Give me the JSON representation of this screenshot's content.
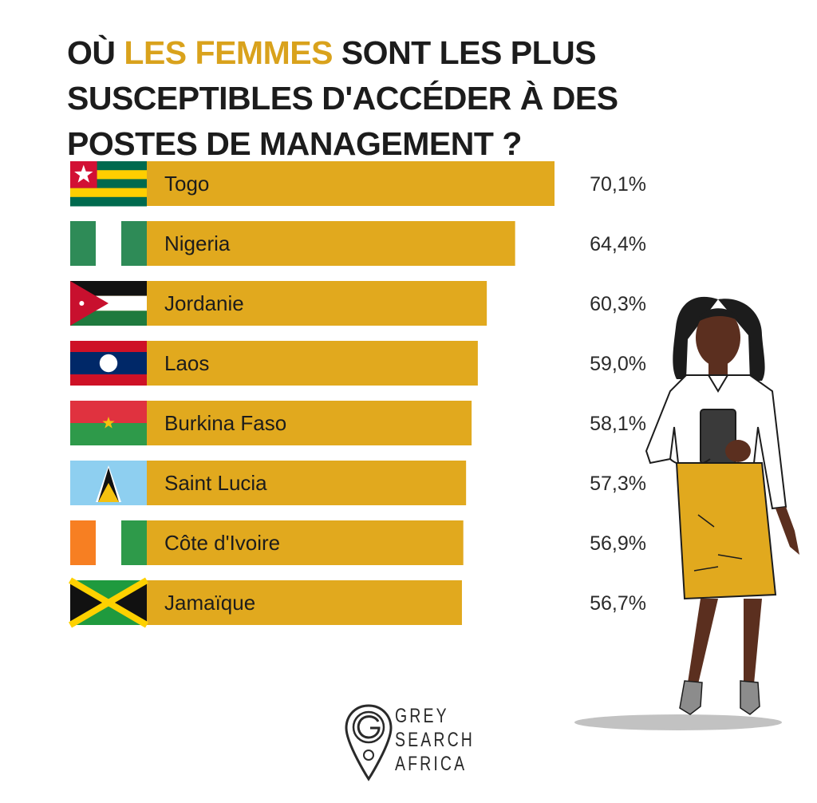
{
  "title": {
    "part1": "OÙ ",
    "highlight": "LES FEMMES",
    "part2": " SONT LES PLUS SUSCEPTIBLES D'ACCÉDER À DES POSTES DE MANAGEMENT ?"
  },
  "colors": {
    "bar": "#E1A91E",
    "highlight": "#D9A21C",
    "text": "#1C1C1C"
  },
  "chart_data": {
    "type": "bar",
    "orientation": "horizontal",
    "categories": [
      "Togo",
      "Nigeria",
      "Jordanie",
      "Laos",
      "Burkina Faso",
      "Saint Lucia",
      "Côte d'Ivoire",
      "Jamaïque"
    ],
    "values": [
      70.1,
      64.4,
      60.3,
      59.0,
      58.1,
      57.3,
      56.9,
      56.7
    ],
    "value_labels": [
      "70,1%",
      "64,4%",
      "60,3%",
      "59,0%",
      "58,1%",
      "57,3%",
      "56,9%",
      "56,7%"
    ],
    "flags": [
      "togo-flag-icon",
      "nigeria-flag-icon",
      "jordan-flag-icon",
      "laos-flag-icon",
      "burkina-faso-flag-icon",
      "saint-lucia-flag-icon",
      "cote-divoire-flag-icon",
      "jamaica-flag-icon"
    ],
    "xlim": [
      0,
      75
    ],
    "grid": false,
    "legend": "none"
  },
  "logo": {
    "line1": "GREY",
    "line2": "SEARCH",
    "line3": "AFRICA"
  },
  "illustration": "businesswoman-illustration"
}
